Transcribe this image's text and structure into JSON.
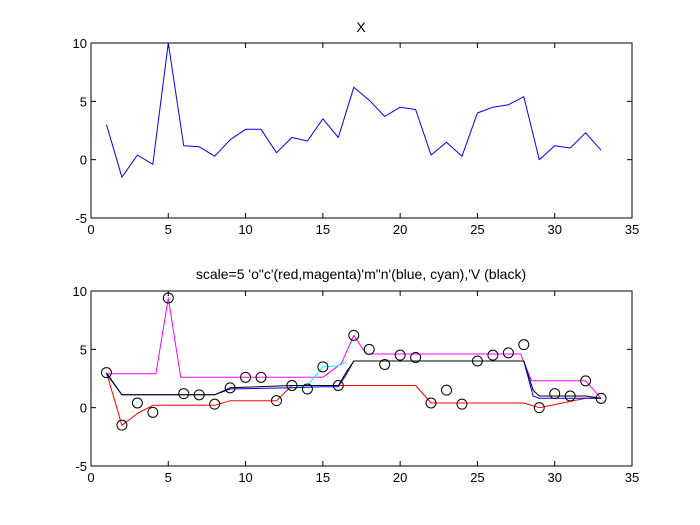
{
  "chart_data": [
    {
      "type": "line",
      "title": "X",
      "xlim": [
        0,
        35
      ],
      "ylim": [
        -5,
        10
      ],
      "xticks": [
        0,
        5,
        10,
        15,
        20,
        25,
        30,
        35
      ],
      "yticks": [
        -5,
        0,
        5,
        10
      ],
      "grid": false,
      "series": [
        {
          "color": "#0000ff",
          "x": [
            1,
            2,
            3,
            4,
            5,
            6,
            7,
            8,
            9,
            10,
            11,
            12,
            13,
            14,
            15,
            16,
            17,
            18,
            19,
            20,
            21,
            22,
            23,
            24,
            25,
            26,
            27,
            28,
            29,
            30,
            31,
            32,
            33
          ],
          "y": [
            3.0,
            -1.5,
            0.4,
            -0.4,
            10.0,
            1.2,
            1.1,
            0.3,
            1.7,
            2.6,
            2.6,
            0.6,
            1.9,
            1.6,
            3.5,
            1.9,
            6.2,
            5.1,
            3.7,
            4.5,
            4.3,
            0.4,
            1.5,
            0.3,
            4.0,
            4.5,
            4.7,
            5.4,
            0.0,
            1.2,
            1.0,
            2.3,
            0.8
          ]
        }
      ]
    },
    {
      "type": "line",
      "title": "scale=5 'o\"c'(red,magenta)'m\"n'(blue, cyan),'V (black)",
      "xlim": [
        0,
        35
      ],
      "ylim": [
        -5,
        10
      ],
      "xticks": [
        0,
        5,
        10,
        15,
        20,
        25,
        30,
        35
      ],
      "yticks": [
        -5,
        0,
        5,
        10
      ],
      "grid": false,
      "markers": {
        "style": "circle",
        "color": "#000000",
        "x": [
          1,
          2,
          3,
          4,
          5,
          6,
          7,
          8,
          9,
          10,
          11,
          12,
          13,
          14,
          15,
          16,
          17,
          18,
          19,
          20,
          21,
          22,
          23,
          24,
          25,
          26,
          27,
          28,
          29,
          30,
          31,
          32,
          33
        ],
        "y": [
          3.0,
          -1.5,
          0.4,
          -0.4,
          9.4,
          1.2,
          1.1,
          0.3,
          1.7,
          2.6,
          2.6,
          0.6,
          1.9,
          1.6,
          3.5,
          1.9,
          6.2,
          5.0,
          3.7,
          4.5,
          4.3,
          0.4,
          1.5,
          0.3,
          4.0,
          4.5,
          4.7,
          5.4,
          0.0,
          1.2,
          1.0,
          2.3,
          0.8
        ]
      },
      "series": [
        {
          "color": "#ff00ff",
          "x": [
            1,
            4.2,
            5,
            5.8,
            15,
            16.2,
            17,
            17.8,
            21,
            27.8,
            28.5,
            32,
            33
          ],
          "y": [
            2.9,
            2.9,
            9.4,
            2.6,
            2.6,
            3.8,
            6.2,
            4.6,
            4.6,
            4.6,
            2.3,
            2.3,
            0.8
          ]
        },
        {
          "color": "#ff0000",
          "x": [
            1,
            2,
            3,
            4,
            5,
            6,
            8,
            9,
            10,
            12,
            13,
            16,
            17,
            21,
            22,
            28,
            29,
            32,
            33
          ],
          "y": [
            3.0,
            -1.5,
            -0.5,
            0.2,
            0.2,
            0.2,
            0.2,
            0.6,
            0.6,
            0.6,
            1.9,
            1.9,
            1.9,
            1.9,
            0.4,
            0.4,
            0.0,
            0.8,
            0.8
          ]
        },
        {
          "color": "#00ffff",
          "x": [
            13,
            14,
            15,
            16,
            16.5
          ],
          "y": [
            1.7,
            1.9,
            3.5,
            3.6,
            3.9
          ]
        },
        {
          "color": "#0000ff",
          "x": [
            1,
            2,
            8,
            9,
            13,
            15,
            16,
            16.5,
            17,
            28,
            28.6,
            29,
            32,
            33
          ],
          "y": [
            3.0,
            1.1,
            1.1,
            1.6,
            1.7,
            1.8,
            1.8,
            2.8,
            4.0,
            4.0,
            1.0,
            0.8,
            0.8,
            0.8
          ]
        },
        {
          "color": "#000000",
          "x": [
            1,
            2,
            8,
            9,
            13,
            16,
            16.5,
            17,
            28,
            28.6,
            29,
            32,
            33
          ],
          "y": [
            2.9,
            1.1,
            1.1,
            1.7,
            1.9,
            1.9,
            3.0,
            4.0,
            4.0,
            1.5,
            1.0,
            1.0,
            0.8
          ]
        }
      ]
    }
  ]
}
